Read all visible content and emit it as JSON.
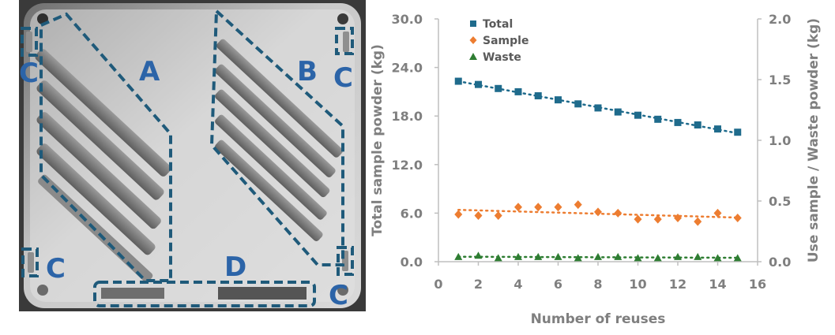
{
  "figure": {
    "region_labels": [
      "A",
      "B",
      "C",
      "C",
      "C",
      "C",
      "D"
    ],
    "outline_color": "#1f5a7a",
    "label_color": "#2c64a8"
  },
  "chart_data": {
    "type": "scatter",
    "xlabel": "Number of reuses",
    "ylabel_left": "Total sample powder (kg)",
    "ylabel_right": "Use sample / Waste powder (kg)",
    "xlim": [
      0,
      16
    ],
    "ylim_left": [
      0,
      30
    ],
    "ylim_right": [
      0,
      2
    ],
    "x_ticks": [
      "0",
      "2",
      "4",
      "6",
      "8",
      "10",
      "12",
      "14",
      "16"
    ],
    "y_left_ticks": [
      "0.0",
      "6.0",
      "12.0",
      "18.0",
      "24.0",
      "30.0"
    ],
    "y_right_ticks": [
      "0.0",
      "0.5",
      "1.0",
      "1.5",
      "2.0"
    ],
    "legend_position": "top-left",
    "grid": false,
    "x": [
      1,
      2,
      3,
      4,
      5,
      6,
      7,
      8,
      9,
      10,
      11,
      12,
      13,
      14,
      15
    ],
    "series": [
      {
        "name": "Total",
        "axis": "left",
        "marker": "square",
        "color": "#1f6b8c",
        "values": [
          22.3,
          21.9,
          21.4,
          21.0,
          20.5,
          20.0,
          19.5,
          19.0,
          18.5,
          18.1,
          17.6,
          17.2,
          16.9,
          16.4,
          16.0
        ]
      },
      {
        "name": "Sample",
        "axis": "right",
        "marker": "diamond",
        "color": "#ed7d31",
        "values": [
          0.39,
          0.38,
          0.38,
          0.45,
          0.45,
          0.45,
          0.47,
          0.41,
          0.4,
          0.35,
          0.35,
          0.36,
          0.33,
          0.4,
          0.36
        ]
      },
      {
        "name": "Waste",
        "axis": "right",
        "marker": "triangle",
        "color": "#2e7d32",
        "values": [
          0.04,
          0.05,
          0.03,
          0.04,
          0.04,
          0.04,
          0.03,
          0.04,
          0.04,
          0.03,
          0.03,
          0.04,
          0.04,
          0.03,
          0.03
        ]
      }
    ]
  }
}
